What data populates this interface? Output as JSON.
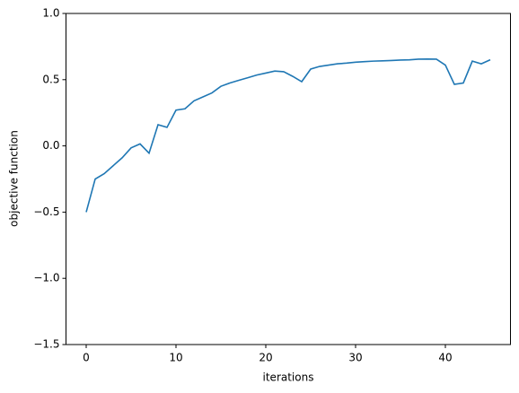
{
  "chart_data": {
    "type": "line",
    "x_label": "iterations",
    "y_label": "objective function",
    "x": [
      0,
      1,
      2,
      3,
      4,
      5,
      6,
      7,
      8,
      9,
      10,
      11,
      12,
      13,
      14,
      15,
      16,
      17,
      18,
      19,
      20,
      21,
      22,
      23,
      24,
      25,
      26,
      27,
      28,
      29,
      30,
      31,
      32,
      33,
      34,
      35,
      36,
      37,
      38,
      39,
      40,
      41,
      42,
      43,
      44,
      45
    ],
    "series": [
      {
        "color": "#1f77b4",
        "values": [
          -0.5,
          -0.25,
          -0.21,
          -0.15,
          -0.09,
          -0.015,
          0.015,
          -0.055,
          0.16,
          0.14,
          0.27,
          0.28,
          0.34,
          0.37,
          0.4,
          0.45,
          0.475,
          0.495,
          0.515,
          0.535,
          0.55,
          0.565,
          0.56,
          0.525,
          0.485,
          0.58,
          0.6,
          0.61,
          0.62,
          0.625,
          0.632,
          0.636,
          0.64,
          0.642,
          0.645,
          0.648,
          0.65,
          0.655,
          0.656,
          0.655,
          0.61,
          0.465,
          0.475,
          0.64,
          0.62,
          0.65
        ]
      }
    ],
    "xlim": [
      -2.25,
      47.25
    ],
    "xticks": [
      0,
      10,
      20,
      30,
      40
    ],
    "ylim": [
      -1.5,
      1.0
    ],
    "yticks": [
      {
        "value": -1.5,
        "label": "−1.5"
      },
      {
        "value": -1.0,
        "label": "−1.0"
      },
      {
        "value": -0.5,
        "label": "−0.5"
      },
      {
        "value": 0,
        "label": "0.0"
      },
      0.5,
      {
        "value": 1.0,
        "label": "1.0"
      }
    ],
    "grid": false
  }
}
